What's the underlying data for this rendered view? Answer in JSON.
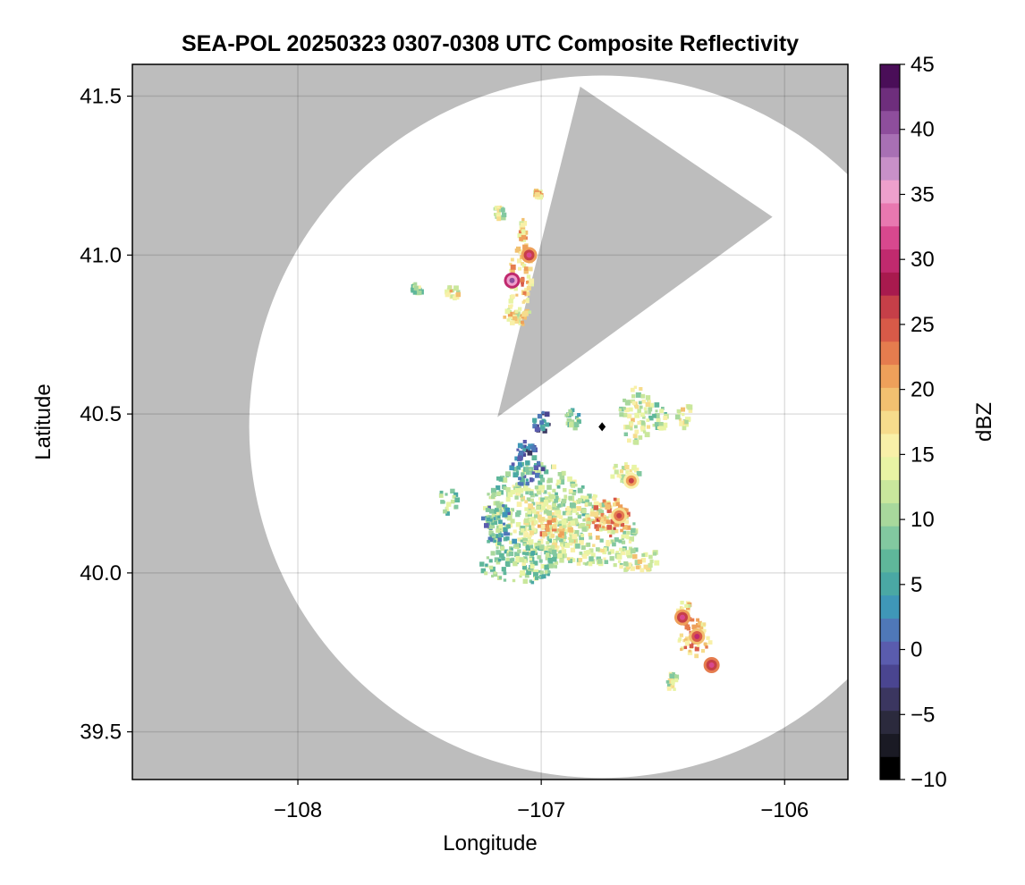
{
  "chart_data": {
    "type": "heatmap",
    "title": "SEA-POL 20250323 0307-0308 UTC Composite Reflectivity",
    "xlabel": "Longitude",
    "ylabel": "Latitude",
    "xlim": [
      -108.68,
      -105.74
    ],
    "ylim": [
      39.35,
      41.6
    ],
    "xticks": [
      -108,
      -107,
      -106
    ],
    "xtick_labels": [
      "−108",
      "−107",
      "−106"
    ],
    "yticks": [
      39.5,
      40.0,
      40.5,
      41.0,
      41.5
    ],
    "ytick_labels": [
      "39.5",
      "40.0",
      "40.5",
      "41.0",
      "41.5"
    ],
    "grid": true,
    "background_color": "#bdbdbd",
    "coverage_color": "#ffffff",
    "radar": {
      "site": [
        -106.75,
        40.46
      ],
      "range_deg_lat": 1.105,
      "range_deg_lon": 1.45,
      "blocked_sector_vertices": [
        [
          -107.18,
          40.49
        ],
        [
          -106.84,
          41.53
        ],
        [
          -106.05,
          41.12
        ]
      ]
    },
    "colorbar": {
      "label": "dBZ",
      "min": -10,
      "max": 45,
      "step": 2.5,
      "ticks": [
        -10,
        -5,
        0,
        5,
        10,
        15,
        20,
        25,
        30,
        35,
        40,
        45
      ],
      "tick_labels": [
        "−10",
        "−5",
        "0",
        "5",
        "10",
        "15",
        "20",
        "25",
        "30",
        "35",
        "40",
        "45"
      ],
      "colormap": "Spectral_r",
      "colors": [
        "#000000",
        "#1a1a24",
        "#2b2a3d",
        "#3b3660",
        "#4a4590",
        "#5a5cae",
        "#4f78b8",
        "#3f97b8",
        "#4aa8a4",
        "#5fb79a",
        "#82c8a0",
        "#a8d89c",
        "#c9e79c",
        "#e8f4a4",
        "#f8f0a8",
        "#f6dc8c",
        "#f2c070",
        "#eea05a",
        "#e57c4e",
        "#d85a48",
        "#c63f48",
        "#a81a4e",
        "#c02a6e",
        "#d8488e",
        "#e878b0",
        "#eea0cc",
        "#c890c8",
        "#a870b4",
        "#8e4e9c",
        "#6e2e7c",
        "#4a0e58"
      ]
    },
    "echo_cells": [
      {
        "lon": -107.02,
        "lat": 40.2,
        "rx": 0.23,
        "ry": 0.15,
        "dbz": 14
      },
      {
        "lon": -106.82,
        "lat": 40.14,
        "rx": 0.2,
        "ry": 0.11,
        "dbz": 16
      },
      {
        "lon": -107.1,
        "lat": 40.04,
        "rx": 0.16,
        "ry": 0.07,
        "dbz": 12
      },
      {
        "lon": -107.19,
        "lat": 40.16,
        "rx": 0.06,
        "ry": 0.07,
        "dbz": 8
      },
      {
        "lon": -106.72,
        "lat": 40.18,
        "rx": 0.08,
        "ry": 0.06,
        "dbz": 24
      },
      {
        "lon": -106.98,
        "lat": 40.14,
        "rx": 0.07,
        "ry": 0.04,
        "dbz": 22
      },
      {
        "lon": -106.66,
        "lat": 40.32,
        "rx": 0.06,
        "ry": 0.04,
        "dbz": 15
      },
      {
        "lon": -106.62,
        "lat": 40.05,
        "rx": 0.1,
        "ry": 0.04,
        "dbz": 17
      },
      {
        "lon": -107.07,
        "lat": 40.33,
        "rx": 0.07,
        "ry": 0.05,
        "dbz": 6
      },
      {
        "lon": -107.07,
        "lat": 40.4,
        "rx": 0.04,
        "ry": 0.02,
        "dbz": 3
      },
      {
        "lon": -107.0,
        "lat": 40.48,
        "rx": 0.04,
        "ry": 0.03,
        "dbz": 4
      },
      {
        "lon": -106.88,
        "lat": 40.49,
        "rx": 0.03,
        "ry": 0.03,
        "dbz": 12
      },
      {
        "lon": -106.62,
        "lat": 40.5,
        "rx": 0.07,
        "ry": 0.09,
        "dbz": 16
      },
      {
        "lon": -106.52,
        "lat": 40.5,
        "rx": 0.03,
        "ry": 0.05,
        "dbz": 14
      },
      {
        "lon": -106.42,
        "lat": 40.5,
        "rx": 0.03,
        "ry": 0.04,
        "dbz": 16
      },
      {
        "lon": -107.39,
        "lat": 40.23,
        "rx": 0.04,
        "ry": 0.04,
        "dbz": 12
      },
      {
        "lon": -107.37,
        "lat": 40.89,
        "rx": 0.03,
        "ry": 0.02,
        "dbz": 17
      },
      {
        "lon": -107.52,
        "lat": 40.9,
        "rx": 0.02,
        "ry": 0.015,
        "dbz": 14
      },
      {
        "lon": -107.09,
        "lat": 40.91,
        "rx": 0.05,
        "ry": 0.13,
        "dbz": 21
      },
      {
        "lon": -107.13,
        "lat": 40.82,
        "rx": 0.03,
        "ry": 0.03,
        "dbz": 18
      },
      {
        "lon": -107.08,
        "lat": 41.07,
        "rx": 0.02,
        "ry": 0.05,
        "dbz": 20
      },
      {
        "lon": -107.02,
        "lat": 41.2,
        "rx": 0.015,
        "ry": 0.015,
        "dbz": 21
      },
      {
        "lon": -107.18,
        "lat": 41.14,
        "rx": 0.02,
        "ry": 0.02,
        "dbz": 16
      },
      {
        "lon": -106.38,
        "lat": 39.8,
        "rx": 0.07,
        "ry": 0.06,
        "dbz": 22
      },
      {
        "lon": -106.42,
        "lat": 39.88,
        "rx": 0.03,
        "ry": 0.04,
        "dbz": 21
      },
      {
        "lon": -106.47,
        "lat": 39.66,
        "rx": 0.02,
        "ry": 0.03,
        "dbz": 15
      }
    ],
    "echo_maxima": [
      {
        "lon": -107.12,
        "lat": 40.92,
        "dbz": 40
      },
      {
        "lon": -107.05,
        "lat": 41.0,
        "dbz": 31
      },
      {
        "lon": -106.68,
        "lat": 40.18,
        "dbz": 27
      },
      {
        "lon": -106.36,
        "lat": 39.8,
        "dbz": 30
      },
      {
        "lon": -106.3,
        "lat": 39.71,
        "dbz": 32
      },
      {
        "lon": -106.42,
        "lat": 39.86,
        "dbz": 31
      },
      {
        "lon": -106.63,
        "lat": 40.29,
        "dbz": 26
      }
    ]
  }
}
